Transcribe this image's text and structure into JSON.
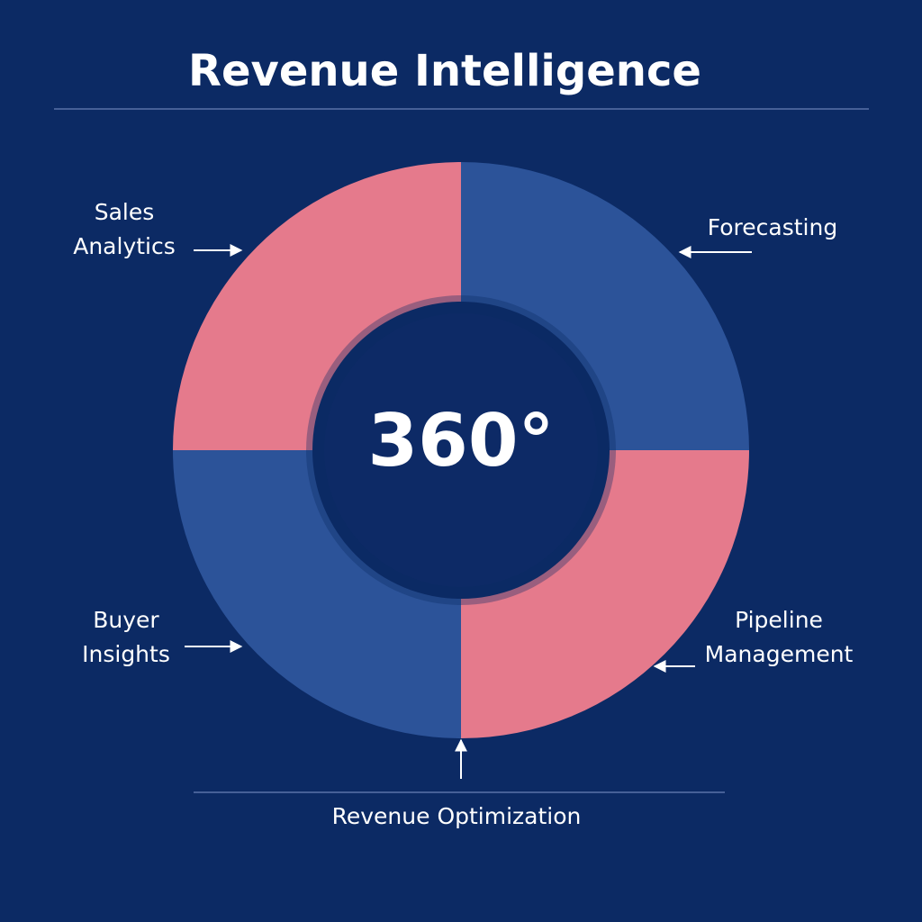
{
  "header": {
    "title": "Revenue Intelligence"
  },
  "center": {
    "label": "360°"
  },
  "nodes": [
    {
      "lines": [
        "Sales",
        "Analytics"
      ]
    },
    {
      "lines": [
        "Forecasting"
      ]
    },
    {
      "lines": [
        "Buyer",
        "Insights"
      ]
    },
    {
      "lines": [
        "Pipeline",
        "Management"
      ]
    }
  ],
  "footer": {
    "label": "Revenue Optimization"
  }
}
